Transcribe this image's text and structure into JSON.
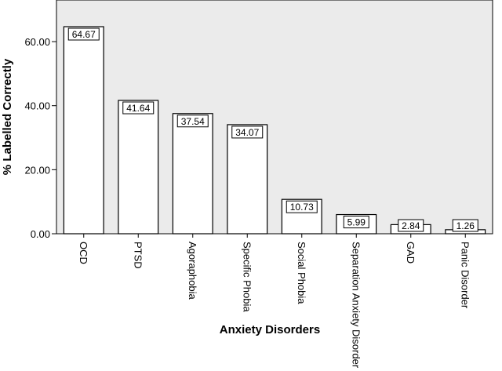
{
  "chart_data": {
    "type": "bar",
    "title": "",
    "xlabel": "Anxiety Disorders",
    "ylabel": "% Labelled Correctly",
    "categories": [
      "OCD",
      "PTSD",
      "Agoraphobia",
      "Specific Phobia",
      "Social Phobia",
      "Separation Anxiety Disorder",
      "GAD",
      "Panic Disorder"
    ],
    "values": [
      64.67,
      41.64,
      37.54,
      34.07,
      10.73,
      5.99,
      2.84,
      1.26
    ],
    "data_labels": [
      "64.67",
      "41.64",
      "37.54",
      "34.07",
      "10.73",
      "5.99",
      "2.84",
      "1.26"
    ],
    "yticks": [
      0,
      20,
      40,
      60
    ],
    "ytick_labels": [
      "0.00",
      "20.00",
      "40.00",
      "60.00"
    ],
    "ylim": [
      0,
      73
    ],
    "grid": false,
    "legend": "none",
    "colors": {
      "plot_background": "#ebebeb",
      "bar_fill": "#ffffff",
      "bar_stroke": "#000000"
    }
  }
}
